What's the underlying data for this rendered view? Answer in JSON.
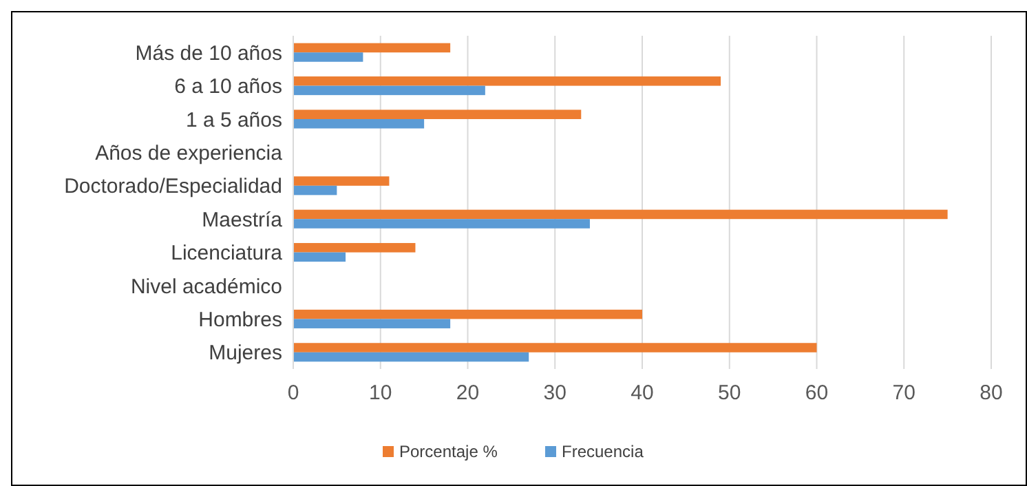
{
  "chart_data": {
    "type": "bar",
    "orientation": "horizontal",
    "categories": [
      "Más de 10 años",
      "6 a 10 años",
      "1 a 5 años",
      "Años de experiencia",
      "Doctorado/Especialidad",
      "Maestría",
      "Licenciatura",
      "Nivel académico",
      "Hombres",
      "Mujeres"
    ],
    "series": [
      {
        "name": "Porcentaje %",
        "color": "#ed7d31",
        "values": [
          18,
          49,
          33,
          null,
          11,
          75,
          14,
          null,
          40,
          60
        ]
      },
      {
        "name": "Frecuencia",
        "color": "#5b9bd5",
        "values": [
          8,
          22,
          15,
          null,
          5,
          34,
          6,
          null,
          18,
          27
        ]
      }
    ],
    "xlim": [
      0,
      80
    ],
    "xticks": [
      0,
      10,
      20,
      30,
      40,
      50,
      60,
      70,
      80
    ],
    "grid": "x",
    "legend": "bottom"
  }
}
